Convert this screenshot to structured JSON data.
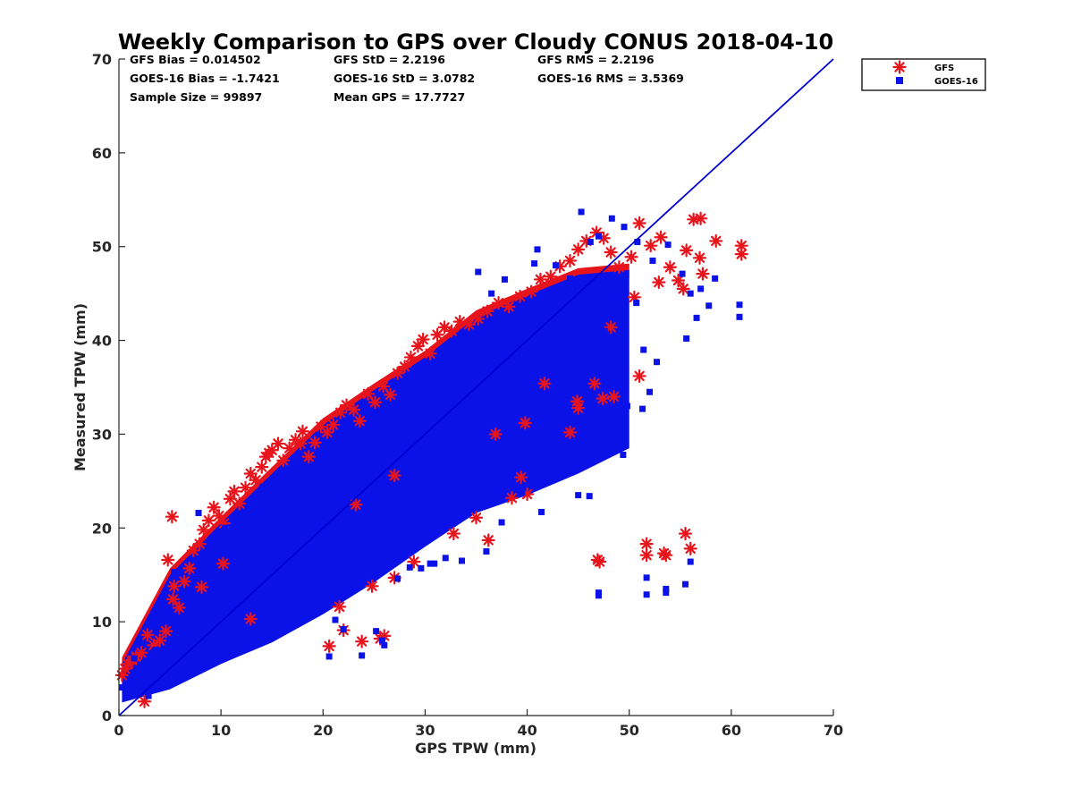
{
  "chart_data": {
    "type": "scatter",
    "title": "Weekly Comparison to GPS over Cloudy CONUS 2018-04-10",
    "xlabel": "GPS TPW (mm)",
    "ylabel": "Measured TPW (mm)",
    "xlim": [
      0,
      70
    ],
    "ylim": [
      0,
      70
    ],
    "xticks": [
      "0",
      "10",
      "20",
      "30",
      "40",
      "50",
      "60",
      "70"
    ],
    "yticks": [
      "0",
      "10",
      "20",
      "30",
      "40",
      "50",
      "60",
      "70"
    ],
    "grid": false,
    "legend_position": "outside-top-right",
    "stats": [
      "GFS Bias = 0.014502",
      "GOES-16 Bias = -1.7421",
      "Sample Size = 99897",
      "GFS StD = 2.2196",
      "GOES-16 StD = 3.0782",
      "Mean GPS = 17.7727",
      "GFS RMS = 2.2196",
      "GOES-16 RMS = 3.5369"
    ],
    "reference_line": {
      "x": [
        0,
        70
      ],
      "y": [
        0,
        70
      ],
      "color": "#0000d0"
    },
    "series": [
      {
        "name": "GFS",
        "marker": "asterisk",
        "color": "#e8141c",
        "points": [
          [
            0.3,
            4.3
          ],
          [
            0.6,
            5.0
          ],
          [
            0.9,
            5.5
          ],
          [
            1.3,
            5.9
          ],
          [
            1.7,
            6.3
          ],
          [
            2.2,
            6.7
          ],
          [
            2.8,
            8.6
          ],
          [
            3.4,
            7.5
          ],
          [
            4.0,
            8.0
          ],
          [
            4.6,
            9.0
          ],
          [
            4.8,
            16.6
          ],
          [
            5.3,
            12.4
          ],
          [
            5.4,
            13.8
          ],
          [
            5.2,
            21.2
          ],
          [
            5.9,
            11.5
          ],
          [
            6.4,
            14.3
          ],
          [
            6.9,
            15.7
          ],
          [
            7.3,
            17.6
          ],
          [
            7.9,
            18.3
          ],
          [
            8.3,
            19.8
          ],
          [
            8.8,
            20.8
          ],
          [
            9.3,
            22.2
          ],
          [
            9.8,
            21.3
          ],
          [
            10.3,
            20.5
          ],
          [
            10.9,
            23.1
          ],
          [
            11.3,
            23.9
          ],
          [
            11.8,
            22.6
          ],
          [
            12.4,
            24.3
          ],
          [
            12.9,
            25.8
          ],
          [
            13.4,
            25.1
          ],
          [
            14.0,
            26.5
          ],
          [
            14.4,
            27.6
          ],
          [
            15.0,
            28.3
          ],
          [
            15.6,
            29.0
          ],
          [
            16.1,
            27.2
          ],
          [
            16.7,
            28.5
          ],
          [
            17.3,
            29.4
          ],
          [
            18.0,
            30.3
          ],
          [
            18.6,
            27.6
          ],
          [
            19.2,
            29.1
          ],
          [
            19.8,
            30.8
          ],
          [
            20.4,
            30.2
          ],
          [
            21.0,
            31.0
          ],
          [
            21.7,
            32.3
          ],
          [
            22.3,
            33.1
          ],
          [
            23.0,
            32.6
          ],
          [
            23.6,
            31.4
          ],
          [
            24.4,
            34.3
          ],
          [
            25.1,
            33.4
          ],
          [
            25.9,
            35.1
          ],
          [
            26.6,
            34.2
          ],
          [
            27.3,
            36.5
          ],
          [
            28.0,
            37.2
          ],
          [
            28.6,
            38.2
          ],
          [
            29.3,
            39.4
          ],
          [
            29.8,
            40.1
          ],
          [
            30.5,
            38.6
          ],
          [
            31.2,
            40.6
          ],
          [
            31.9,
            41.4
          ],
          [
            32.6,
            41.0
          ],
          [
            33.4,
            42.0
          ],
          [
            34.3,
            41.7
          ],
          [
            35.2,
            42.3
          ],
          [
            36.1,
            43.1
          ],
          [
            37.2,
            44.0
          ],
          [
            38.2,
            43.6
          ],
          [
            39.3,
            44.7
          ],
          [
            40.4,
            45.2
          ],
          [
            41.3,
            46.5
          ],
          [
            42.3,
            46.8
          ],
          [
            43.2,
            47.9
          ],
          [
            44.2,
            48.5
          ],
          [
            45.0,
            49.7
          ],
          [
            45.8,
            50.6
          ],
          [
            46.8,
            51.5
          ],
          [
            47.5,
            50.9
          ],
          [
            48.2,
            49.4
          ],
          [
            49.0,
            47.8
          ],
          [
            50.2,
            48.9
          ],
          [
            51.0,
            52.5
          ],
          [
            52.1,
            50.1
          ],
          [
            53.1,
            51.0
          ],
          [
            54.0,
            47.8
          ],
          [
            54.8,
            46.4
          ],
          [
            55.6,
            49.6
          ],
          [
            56.3,
            52.9
          ],
          [
            56.9,
            48.8
          ],
          [
            57.0,
            53.0
          ],
          [
            57.2,
            47.1
          ],
          [
            58.5,
            50.6
          ],
          [
            61.0,
            50.1
          ],
          [
            61.0,
            49.2
          ],
          [
            55.3,
            45.5
          ],
          [
            52.9,
            46.2
          ],
          [
            50.5,
            44.6
          ],
          [
            48.2,
            41.4
          ],
          [
            46.6,
            35.4
          ],
          [
            47.4,
            33.8
          ],
          [
            48.5,
            34.0
          ],
          [
            51.0,
            36.2
          ],
          [
            45.0,
            32.8
          ],
          [
            44.2,
            30.2
          ],
          [
            39.4,
            25.4
          ],
          [
            40.0,
            23.6
          ],
          [
            38.5,
            23.2
          ],
          [
            36.2,
            18.7
          ],
          [
            35.0,
            21.1
          ],
          [
            32.8,
            19.4
          ],
          [
            28.9,
            16.4
          ],
          [
            27.0,
            14.7
          ],
          [
            24.8,
            13.8
          ],
          [
            21.6,
            11.6
          ],
          [
            22.0,
            9.1
          ],
          [
            20.6,
            7.4
          ],
          [
            23.8,
            7.9
          ],
          [
            25.6,
            8.2
          ],
          [
            26.0,
            8.5
          ],
          [
            2.5,
            1.5
          ],
          [
            46.9,
            16.6
          ],
          [
            47.1,
            16.4
          ],
          [
            51.7,
            18.3
          ],
          [
            51.7,
            17.1
          ],
          [
            53.4,
            17.3
          ],
          [
            53.6,
            17.1
          ],
          [
            55.5,
            19.4
          ],
          [
            56.0,
            17.8
          ],
          [
            41.7,
            35.4
          ],
          [
            44.9,
            33.5
          ],
          [
            39.8,
            31.2
          ],
          [
            36.9,
            30.0
          ],
          [
            17.8,
            29.0
          ],
          [
            14.7,
            28.0
          ],
          [
            10.2,
            16.2
          ],
          [
            8.1,
            13.7
          ],
          [
            12.9,
            10.3
          ],
          [
            23.2,
            22.5
          ],
          [
            27.0,
            25.6
          ]
        ]
      },
      {
        "name": "GOES-16",
        "marker": "square",
        "color": "#0a12e8",
        "points": [
          [
            0.3,
            3.0
          ],
          [
            0.8,
            2.6
          ],
          [
            1.3,
            3.8
          ],
          [
            2.0,
            2.4
          ],
          [
            2.9,
            2.1
          ],
          [
            3.5,
            3.0
          ],
          [
            4.2,
            3.6
          ],
          [
            5.0,
            4.4
          ],
          [
            5.4,
            15.3
          ],
          [
            6.2,
            6.5
          ],
          [
            7.8,
            21.6
          ],
          [
            9.0,
            9.0
          ],
          [
            10.4,
            20.0
          ],
          [
            12.8,
            21.8
          ],
          [
            14.1,
            24.4
          ],
          [
            16.0,
            11.0
          ],
          [
            18.2,
            12.5
          ],
          [
            19.0,
            13.6
          ],
          [
            20.6,
            6.3
          ],
          [
            21.2,
            10.2
          ],
          [
            22.0,
            9.2
          ],
          [
            23.8,
            6.4
          ],
          [
            25.2,
            9.0
          ],
          [
            26.0,
            7.5
          ],
          [
            25.8,
            8.0
          ],
          [
            28.5,
            15.8
          ],
          [
            30.5,
            16.2
          ],
          [
            32.0,
            16.8
          ],
          [
            33.8,
            29.2
          ],
          [
            35.4,
            39.8
          ],
          [
            35.2,
            47.3
          ],
          [
            36.5,
            45.0
          ],
          [
            37.8,
            46.5
          ],
          [
            40.7,
            48.2
          ],
          [
            41.0,
            49.7
          ],
          [
            42.8,
            48.0
          ],
          [
            44.2,
            46.6
          ],
          [
            45.3,
            53.7
          ],
          [
            46.2,
            50.5
          ],
          [
            47.0,
            51.1
          ],
          [
            48.3,
            53.0
          ],
          [
            49.5,
            52.1
          ],
          [
            50.8,
            50.5
          ],
          [
            52.3,
            48.5
          ],
          [
            53.8,
            50.2
          ],
          [
            55.2,
            47.1
          ],
          [
            56.0,
            45.0
          ],
          [
            57.0,
            45.5
          ],
          [
            57.8,
            43.7
          ],
          [
            55.6,
            40.2
          ],
          [
            56.6,
            42.4
          ],
          [
            58.4,
            46.6
          ],
          [
            60.8,
            43.8
          ],
          [
            60.8,
            42.5
          ],
          [
            52.7,
            37.7
          ],
          [
            51.3,
            32.7
          ],
          [
            49.0,
            31.2
          ],
          [
            49.4,
            27.8
          ],
          [
            46.2,
            27.1
          ],
          [
            45.0,
            23.5
          ],
          [
            42.8,
            26.7
          ],
          [
            41.4,
            21.7
          ],
          [
            39.5,
            23.8
          ],
          [
            37.5,
            20.6
          ],
          [
            36.0,
            17.5
          ],
          [
            33.6,
            16.5
          ],
          [
            30.9,
            16.2
          ],
          [
            29.6,
            15.7
          ],
          [
            27.3,
            14.6
          ],
          [
            47.0,
            13.1
          ],
          [
            47.0,
            12.8
          ],
          [
            51.7,
            14.7
          ],
          [
            51.7,
            12.9
          ],
          [
            53.6,
            13.5
          ],
          [
            53.6,
            13.1
          ],
          [
            55.5,
            14.0
          ],
          [
            56.0,
            16.4
          ],
          [
            46.1,
            23.4
          ],
          [
            46.7,
            27.3
          ],
          [
            49.8,
            33.0
          ],
          [
            52.0,
            34.5
          ],
          [
            51.4,
            39.0
          ],
          [
            47.6,
            41.0
          ],
          [
            45.1,
            39.0
          ],
          [
            43.5,
            37.0
          ],
          [
            38.1,
            30.0
          ],
          [
            32.0,
            28.0
          ],
          [
            12.0,
            16.0
          ],
          [
            16.3,
            19.1
          ],
          [
            19.4,
            22.6
          ],
          [
            24.9,
            24.2
          ],
          [
            29.0,
            27.5
          ],
          [
            2.2,
            5.0
          ],
          [
            1.5,
            6.1
          ],
          [
            3.6,
            7.0
          ],
          [
            4.4,
            11.0
          ],
          [
            6.8,
            9.8
          ],
          [
            8.5,
            11.3
          ],
          [
            10.6,
            13.1
          ],
          [
            14.6,
            15.7
          ],
          [
            17.5,
            19.0
          ],
          [
            21.3,
            21.6
          ],
          [
            26.5,
            28.3
          ],
          [
            30.2,
            32.5
          ],
          [
            33.7,
            36.4
          ],
          [
            36.8,
            38.3
          ],
          [
            39.7,
            40.2
          ],
          [
            42.5,
            41.8
          ],
          [
            44.9,
            43.9
          ],
          [
            48.6,
            45.5
          ],
          [
            50.7,
            44.0
          ]
        ]
      }
    ],
    "density_band": {
      "name": "GOES-16",
      "color": "#0a12e8",
      "x": [
        0.3,
        5,
        10,
        15,
        20,
        25,
        30,
        35,
        40,
        45,
        50
      ],
      "upper": [
        5.5,
        15.0,
        20.5,
        25.8,
        31.0,
        34.7,
        38.2,
        42.5,
        44.8,
        47.0,
        47.5
      ],
      "lower": [
        1.4,
        2.8,
        5.5,
        7.8,
        10.8,
        14.2,
        18.0,
        21.6,
        23.5,
        25.8,
        28.5
      ],
      "gfs_upper_edge": [
        4.8,
        13.8,
        19.5,
        24.4,
        30.1,
        33.6,
        37.6,
        41.8,
        44.2,
        46.6,
        47.2
      ]
    }
  },
  "legend": {
    "entries": [
      {
        "label": "GFS",
        "marker": "asterisk",
        "color": "#e8141c"
      },
      {
        "label": "GOES-16",
        "marker": "square",
        "color": "#0a12e8"
      }
    ]
  }
}
